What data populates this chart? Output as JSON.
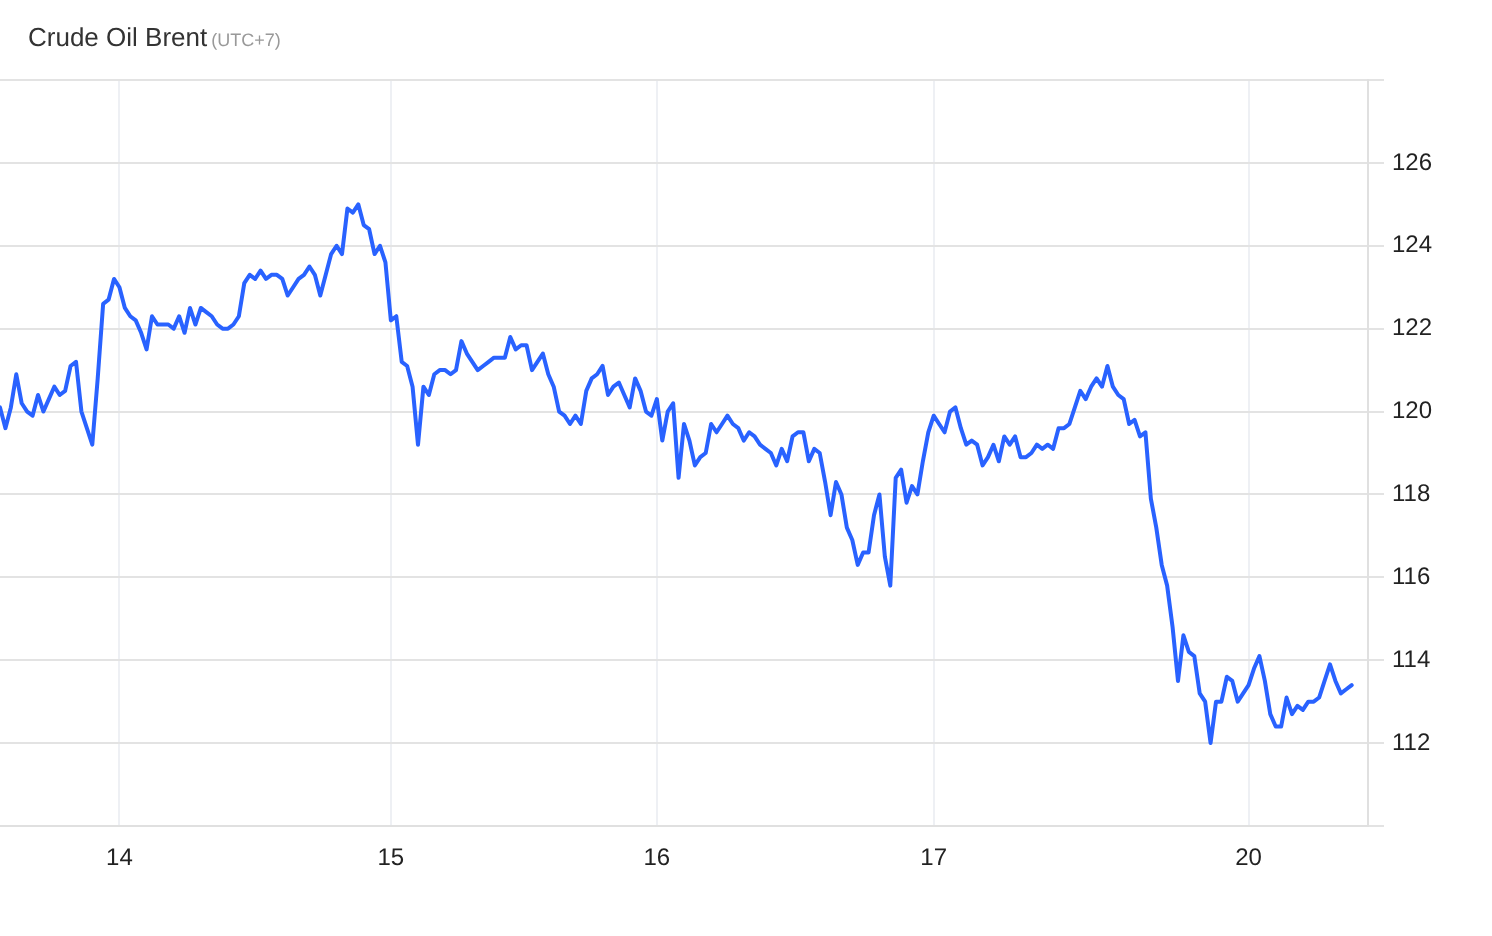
{
  "chart_data": {
    "type": "line",
    "title": "Crude Oil Brent",
    "subtitle": "(UTC+7)",
    "categories": [
      null,
      null,
      null,
      null,
      null,
      null,
      null,
      null,
      null,
      null,
      null,
      null,
      null,
      null,
      null,
      null,
      null,
      null,
      null,
      null,
      null,
      null,
      "14",
      null,
      null,
      null,
      null,
      null,
      null,
      null,
      null,
      null,
      null,
      null,
      null,
      null,
      null,
      null,
      null,
      null,
      null,
      null,
      null,
      null,
      null,
      null,
      null,
      null,
      null,
      null,
      null,
      null,
      null,
      null,
      null,
      null,
      null,
      null,
      null,
      null,
      null,
      null,
      null,
      null,
      null,
      null,
      null,
      null,
      null,
      null,
      null,
      null,
      "15",
      null,
      null,
      null,
      null,
      null,
      null,
      null,
      null,
      null,
      null,
      null,
      null,
      null,
      null,
      null,
      null,
      null,
      null,
      null,
      null,
      null,
      null,
      null,
      null,
      null,
      null,
      null,
      null,
      null,
      null,
      null,
      null,
      null,
      null,
      null,
      null,
      null,
      null,
      null,
      null,
      null,
      null,
      null,
      null,
      null,
      null,
      null,
      null,
      "16",
      null,
      null,
      null,
      null,
      null,
      null,
      null,
      null,
      null,
      null,
      null,
      null,
      null,
      null,
      null,
      null,
      null,
      null,
      null,
      null,
      null,
      null,
      null,
      null,
      null,
      null,
      null,
      null,
      null,
      null,
      null,
      null,
      null,
      null,
      null,
      null,
      null,
      null,
      null,
      null,
      null,
      null,
      null,
      null,
      null,
      null,
      null,
      null,
      null,
      null,
      "17",
      null,
      null,
      null,
      null,
      null,
      null,
      null,
      null,
      null,
      null,
      null,
      null,
      null,
      null,
      null,
      null,
      null,
      null,
      null,
      null,
      null,
      null,
      null,
      null,
      null,
      null,
      null,
      null,
      null,
      null,
      null,
      null,
      null,
      null,
      null,
      null,
      null,
      null,
      null,
      null,
      null,
      null,
      null,
      null,
      null,
      null,
      null,
      null,
      null,
      null,
      null,
      null,
      null,
      null,
      null,
      null,
      null,
      "20",
      null,
      null,
      null,
      null,
      null,
      null,
      null,
      null,
      null,
      null,
      null,
      null,
      null,
      null,
      null,
      null,
      null,
      null,
      null,
      null,
      null,
      null
    ],
    "values": [
      120.1,
      119.6,
      120.1,
      120.9,
      120.2,
      120.0,
      119.9,
      120.4,
      120.0,
      120.3,
      120.6,
      120.4,
      120.5,
      121.1,
      121.2,
      120.0,
      119.6,
      119.2,
      120.8,
      122.6,
      122.7,
      123.2,
      123.0,
      122.5,
      122.3,
      122.2,
      121.9,
      121.5,
      122.3,
      122.1,
      122.1,
      122.1,
      122.0,
      122.3,
      121.9,
      122.5,
      122.1,
      122.5,
      122.4,
      122.3,
      122.1,
      122.0,
      122.0,
      122.1,
      122.3,
      123.1,
      123.3,
      123.2,
      123.4,
      123.2,
      123.3,
      123.3,
      123.2,
      122.8,
      123.0,
      123.2,
      123.3,
      123.5,
      123.3,
      122.8,
      123.3,
      123.8,
      124.0,
      123.8,
      124.9,
      124.8,
      125.0,
      124.5,
      124.4,
      123.8,
      124.0,
      123.6,
      122.2,
      122.3,
      121.2,
      121.1,
      120.6,
      119.2,
      120.6,
      120.4,
      120.9,
      121.0,
      121.0,
      120.9,
      121.0,
      121.7,
      121.4,
      121.2,
      121.0,
      121.1,
      121.2,
      121.3,
      121.3,
      121.3,
      121.8,
      121.5,
      121.6,
      121.6,
      121.0,
      121.2,
      121.4,
      120.9,
      120.6,
      120.0,
      119.9,
      119.7,
      119.9,
      119.7,
      120.5,
      120.8,
      120.9,
      121.1,
      120.4,
      120.6,
      120.7,
      120.4,
      120.1,
      120.8,
      120.5,
      120.0,
      119.9,
      120.3,
      119.3,
      120.0,
      120.2,
      118.4,
      119.7,
      119.3,
      118.7,
      118.9,
      119.0,
      119.7,
      119.5,
      119.7,
      119.9,
      119.7,
      119.6,
      119.3,
      119.5,
      119.4,
      119.2,
      119.1,
      119.0,
      118.7,
      119.1,
      118.8,
      119.4,
      119.5,
      119.5,
      118.8,
      119.1,
      119.0,
      118.3,
      117.5,
      118.3,
      118.0,
      117.2,
      116.9,
      116.3,
      116.6,
      116.6,
      117.5,
      118.0,
      116.5,
      115.8,
      118.4,
      118.6,
      117.8,
      118.2,
      118.0,
      118.8,
      119.5,
      119.9,
      119.7,
      119.5,
      120.0,
      120.1,
      119.6,
      119.2,
      119.3,
      119.2,
      118.7,
      118.9,
      119.2,
      118.8,
      119.4,
      119.2,
      119.4,
      118.9,
      118.9,
      119.0,
      119.2,
      119.1,
      119.2,
      119.1,
      119.6,
      119.6,
      119.7,
      120.1,
      120.5,
      120.3,
      120.6,
      120.8,
      120.6,
      121.1,
      120.6,
      120.4,
      120.3,
      119.7,
      119.8,
      119.4,
      119.5,
      117.9,
      117.2,
      116.3,
      115.8,
      114.8,
      113.5,
      114.6,
      114.2,
      114.1,
      113.2,
      113.0,
      112.0,
      113.0,
      113.0,
      113.6,
      113.5,
      113.0,
      113.2,
      113.4,
      113.8,
      114.1,
      113.5,
      112.7,
      112.4,
      112.4,
      113.1,
      112.7,
      112.9,
      112.8,
      113.0,
      113.0,
      113.1,
      113.5,
      113.9,
      113.5,
      113.2,
      113.3,
      113.4,
      null,
      null,
      null
    ],
    "color": "#2962ff",
    "ylim": [
      110,
      128
    ],
    "yticks": [
      {
        "value": 110,
        "label": null
      },
      112,
      114,
      116,
      118,
      120,
      122,
      124,
      126,
      {
        "value": 128,
        "label": null
      }
    ],
    "grid": true,
    "marker": "none",
    "line_style": "solid"
  }
}
